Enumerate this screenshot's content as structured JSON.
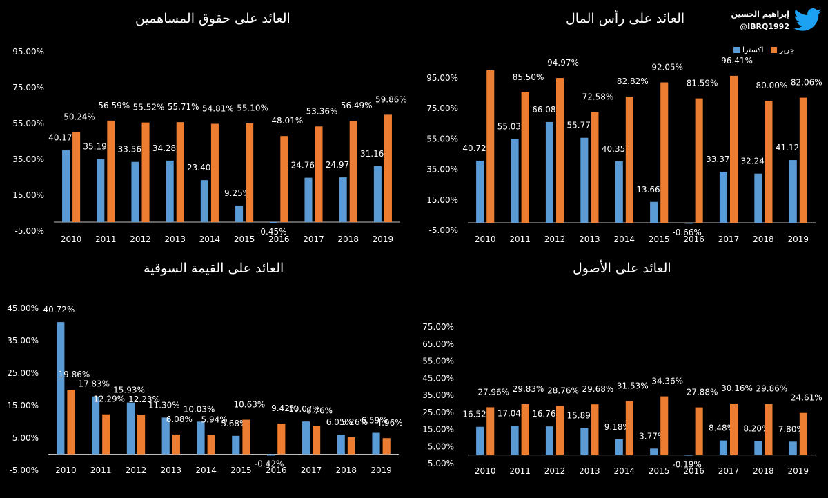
{
  "brand": {
    "name": "إبراهيم الحسين",
    "handle": "@IBRQ1992",
    "icon": "twitter-bird-icon",
    "color": "#1DA1F2"
  },
  "colors": {
    "ekstra": "#5B9BD5",
    "jarir": "#ED7D31",
    "axis": "#BFBFBF",
    "text": "#FFFFFF"
  },
  "legend": {
    "ekstra_label": "اكسترا",
    "jarir_label": "جرير"
  },
  "chart_data": [
    {
      "id": "roe",
      "type": "bar",
      "title": "العائد على حقوق المساهمين",
      "categories": [
        "2010",
        "2011",
        "2012",
        "2013",
        "2014",
        "2015",
        "2016",
        "2017",
        "2018",
        "2019"
      ],
      "ylim": [
        -5,
        95
      ],
      "yticks": [
        "-5.00%",
        "15.00%",
        "35.00%",
        "55.00%",
        "75.00%",
        "95.00%"
      ],
      "series": [
        {
          "name": "اكسترا",
          "values": [
            40.17,
            35.19,
            33.56,
            34.28,
            23.4,
            9.25,
            -0.45,
            24.76,
            24.97,
            31.16
          ],
          "labels": [
            "40.17%",
            "35.19%",
            "33.56%",
            "34.28%",
            "23.40%",
            "9.25%",
            "-0.45%",
            "24.76%",
            "24.97%",
            "31.16%"
          ]
        },
        {
          "name": "جرير",
          "values": [
            50.24,
            56.59,
            55.52,
            55.71,
            54.81,
            55.1,
            48.01,
            53.36,
            56.49,
            59.86
          ],
          "labels": [
            "50.24%",
            "56.59%",
            "55.52%",
            "55.71%",
            "54.81%",
            "55.10%",
            "48.01%",
            "53.36%",
            "56.49%",
            "59.86%"
          ]
        }
      ]
    },
    {
      "id": "roc",
      "type": "bar",
      "title": "العائد على رأس المال",
      "categories": [
        "2010",
        "2011",
        "2012",
        "2013",
        "2014",
        "2015",
        "2016",
        "2017",
        "2018",
        "2019"
      ],
      "ylim": [
        -5,
        95
      ],
      "yticks": [
        "-5.00%",
        "15.00%",
        "35.00%",
        "55.00%",
        "75.00%",
        "95.00%"
      ],
      "series": [
        {
          "name": "اكسترا",
          "values": [
            40.72,
            55.03,
            66.08,
            55.77,
            40.35,
            13.66,
            -0.66,
            33.37,
            32.24,
            41.12
          ],
          "labels": [
            "40.72%",
            "55.03%",
            "66.08%",
            "55.77%",
            "40.35%",
            "13.66%",
            "-0.66%",
            "33.37%",
            "32.24%",
            "41.12%"
          ]
        },
        {
          "name": "جرير",
          "values": [
            100.0,
            85.5,
            94.97,
            72.58,
            82.82,
            92.05,
            81.59,
            96.41,
            80.0,
            82.06
          ],
          "labels": [
            "",
            "85.50%",
            "94.97%",
            "72.58%",
            "82.82%",
            "92.05%",
            "81.59%",
            "96.41%",
            "80.00%",
            "82.06%"
          ]
        }
      ]
    },
    {
      "id": "rom",
      "type": "bar",
      "title": "العائد على القيمة السوقية",
      "categories": [
        "2010",
        "2011",
        "2012",
        "2013",
        "2014",
        "2015",
        "2016",
        "2017",
        "2018",
        "2019"
      ],
      "ylim": [
        -5,
        45
      ],
      "yticks": [
        "-5.00%",
        "5.00%",
        "15.00%",
        "25.00%",
        "35.00%",
        "45.00%"
      ],
      "series": [
        {
          "name": "اكسترا",
          "values": [
            40.72,
            17.83,
            15.93,
            11.3,
            10.03,
            5.68,
            -0.42,
            10.07,
            6.05,
            6.59
          ],
          "labels": [
            "40.72%",
            "17.83%",
            "15.93%",
            "11.30%",
            "10.03%",
            "5.68%",
            "-0.42%",
            "10.07%",
            "6.05%",
            "6.59%"
          ]
        },
        {
          "name": "جرير",
          "values": [
            19.86,
            12.29,
            12.23,
            6.08,
            5.94,
            10.63,
            9.42,
            8.76,
            5.26,
            4.96
          ],
          "labels": [
            "19.86%",
            "12.29%",
            "12.23%",
            "6.08%",
            "5.94%",
            "10.63%",
            "9.42%",
            "8.76%",
            "5.26%",
            "4.96%"
          ]
        }
      ]
    },
    {
      "id": "roa",
      "type": "bar",
      "title": "العائد على الأصول",
      "categories": [
        "2010",
        "2011",
        "2012",
        "2013",
        "2014",
        "2015",
        "2016",
        "2017",
        "2018",
        "2019"
      ],
      "ylim": [
        -5,
        75
      ],
      "yticks": [
        "-5.00%",
        "5.00%",
        "15.00%",
        "25.00%",
        "35.00%",
        "45.00%",
        "55.00%",
        "65.00%",
        "75.00%"
      ],
      "series": [
        {
          "name": "اكسترا",
          "values": [
            16.52,
            17.04,
            16.76,
            15.89,
            9.18,
            3.77,
            -0.19,
            8.48,
            8.2,
            7.8
          ],
          "labels": [
            "16.52%",
            "17.04%",
            "16.76%",
            "15.89%",
            "9.18%",
            "3.77%",
            "-0.19%",
            "8.48%",
            "8.20%",
            "7.80%"
          ]
        },
        {
          "name": "جرير",
          "values": [
            27.96,
            29.83,
            28.76,
            29.68,
            31.53,
            34.36,
            27.88,
            30.16,
            29.86,
            24.61
          ],
          "labels": [
            "27.96%",
            "29.83%",
            "28.76%",
            "29.68%",
            "31.53%",
            "34.36%",
            "27.88%",
            "30.16%",
            "29.86%",
            "24.61%"
          ]
        }
      ]
    }
  ]
}
